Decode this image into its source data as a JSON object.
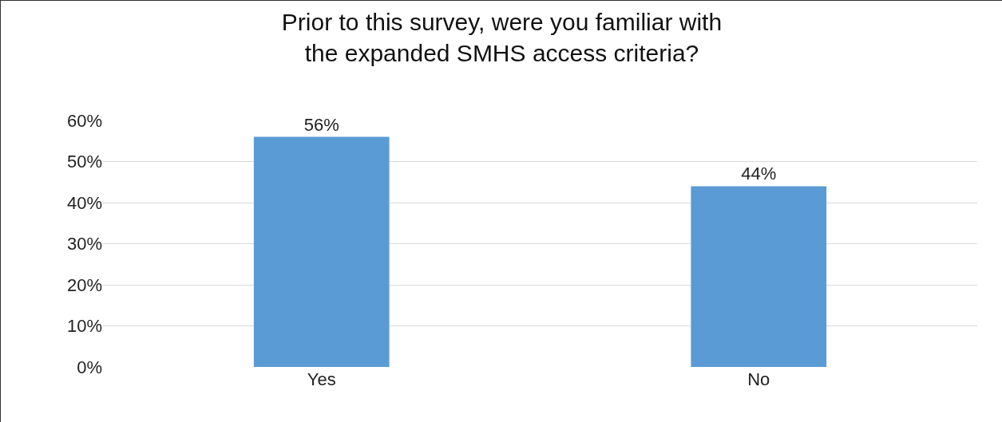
{
  "chart_data": {
    "type": "bar",
    "title": "Prior to this survey, were you familiar with\nthe expanded SMHS access criteria?",
    "categories": [
      "Yes",
      "No"
    ],
    "values": [
      56,
      44
    ],
    "value_labels": [
      "56%",
      "44%"
    ],
    "color": "#5b9bd5",
    "ylim": [
      0,
      60
    ],
    "yticks": [
      {
        "value": 0,
        "label": "0%"
      },
      {
        "value": 10,
        "label": "10%"
      },
      {
        "value": 20,
        "label": "20%"
      },
      {
        "value": 30,
        "label": "30%"
      },
      {
        "value": 40,
        "label": "40%"
      },
      {
        "value": 50,
        "label": "50%"
      },
      {
        "value": 60,
        "label": "60%"
      }
    ],
    "grid": "y"
  }
}
